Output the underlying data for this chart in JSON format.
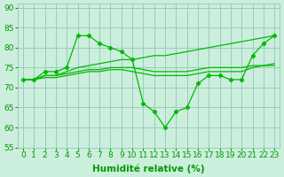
{
  "xlabel": "Humidité relative (%)",
  "background_color": "#cceedd",
  "line_color": "#00bb00",
  "grid_color": "#99ccbb",
  "xlim": [
    -0.5,
    23.5
  ],
  "ylim": [
    55,
    91
  ],
  "yticks": [
    55,
    60,
    65,
    70,
    75,
    80,
    85,
    90
  ],
  "xticks": [
    0,
    1,
    2,
    3,
    4,
    5,
    6,
    7,
    8,
    9,
    10,
    11,
    12,
    13,
    14,
    15,
    16,
    17,
    18,
    19,
    20,
    21,
    22,
    23
  ],
  "line1_x": [
    0,
    1,
    2,
    3,
    4,
    5,
    6,
    7,
    8,
    9,
    10,
    11,
    12,
    13,
    14,
    15,
    16,
    17,
    18,
    19,
    20,
    21,
    22,
    23
  ],
  "line1_y": [
    72,
    72,
    74,
    74,
    75,
    83,
    83,
    81,
    80,
    79,
    77,
    66,
    64,
    60,
    64,
    65,
    71,
    73,
    73,
    72,
    72,
    78,
    81,
    83
  ],
  "line2_x": [
    0,
    1,
    2,
    3,
    4,
    5,
    6,
    7,
    8,
    9,
    10,
    11,
    12,
    13,
    14,
    15,
    16,
    17,
    18,
    19,
    20,
    21,
    22,
    23
  ],
  "line2_y": [
    72,
    72,
    73,
    73,
    74,
    75,
    75.5,
    76,
    76.5,
    77,
    77,
    77.5,
    78,
    78,
    78.5,
    79,
    79.5,
    80,
    80.5,
    81,
    81.5,
    82,
    82.5,
    83
  ],
  "line3_x": [
    0,
    1,
    2,
    3,
    4,
    5,
    6,
    7,
    8,
    9,
    10,
    11,
    12,
    13,
    14,
    15,
    16,
    17,
    18,
    19,
    20,
    21,
    22,
    23
  ],
  "line3_y": [
    72,
    72,
    72.5,
    72.5,
    73,
    73.5,
    74,
    74,
    74.5,
    74.5,
    74,
    73.5,
    73,
    73,
    73,
    73,
    73.5,
    74,
    74,
    74,
    74,
    75,
    75.5,
    76
  ],
  "line4_x": [
    0,
    1,
    2,
    3,
    4,
    5,
    6,
    7,
    8,
    9,
    10,
    11,
    12,
    13,
    14,
    15,
    16,
    17,
    18,
    19,
    20,
    21,
    22,
    23
  ],
  "line4_y": [
    72,
    72,
    73,
    73,
    73.5,
    74,
    74.5,
    74.5,
    75,
    75,
    75,
    74.5,
    74,
    74,
    74,
    74,
    74.5,
    75,
    75,
    75,
    75,
    75.5,
    75.5,
    75.5
  ],
  "font_color": "#009900",
  "tick_fontsize": 6.5,
  "label_fontsize": 7.5
}
